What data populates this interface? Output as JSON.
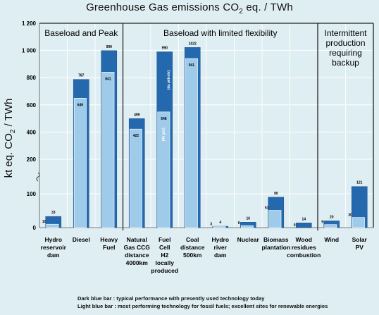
{
  "chart_data": {
    "type": "bar",
    "title_main": "Greenhouse Gas  emissions CO",
    "title_sub": "2",
    "title_end": " eq. / TWh",
    "ylabel_main": "kt eq. CO",
    "ylabel_sub": "2",
    "ylabel_end": " / TWh",
    "y_ticks": [
      "0",
      "100",
      "200",
      "400",
      "600",
      "800",
      "1 000",
      "1 200"
    ],
    "y_tick_values": [
      0,
      100,
      200,
      400,
      600,
      800,
      1000,
      1200
    ],
    "axis_break": "between 100 and 200",
    "categories": [
      [
        "Hydro",
        "reservoir",
        "dam"
      ],
      [
        "Diesel"
      ],
      [
        "Heavy",
        "Fuel"
      ],
      [
        "Natural",
        "Gas CCG",
        "distance",
        "4000km"
      ],
      [
        "Fuel",
        "Cell",
        "H2",
        "locally",
        "produced"
      ],
      [
        "Coal",
        "distance",
        "500km"
      ],
      [
        "Hydro",
        "river",
        "dam"
      ],
      [
        "Nuclear"
      ],
      [
        "Biomass",
        "plantation"
      ],
      [
        "Wood",
        "residues",
        "combustion"
      ],
      [
        "Wind"
      ],
      [
        "Solar",
        "PV"
      ]
    ],
    "series": [
      {
        "name": "Dark blue bar",
        "color": "#2468ad",
        "values": [
          33,
          787,
          999,
          499,
          990,
          1022,
          4,
          16,
          90,
          14,
          20,
          121
        ]
      },
      {
        "name": "Light blue bar",
        "color": "#9fcbea",
        "values": [
          10,
          649,
          841,
          422,
          548,
          941,
          3,
          6,
          51,
          0,
          9,
          30
        ]
      }
    ],
    "bar_notes": [
      {
        "category_index": 4,
        "series": "Dark blue bar",
        "text": "(du pétrole)"
      },
      {
        "category_index": 4,
        "series": "Light blue bar",
        "text": "(du gaz)"
      }
    ],
    "groups": [
      {
        "label_lines": [
          "Baseload and Peak"
        ],
        "categories": [
          0,
          2
        ]
      },
      {
        "label_lines": [
          "Baseload with limited flexibility"
        ],
        "categories": [
          3,
          9
        ]
      },
      {
        "label_lines": [
          "Intermittent",
          "production",
          "requiring",
          "backup"
        ],
        "categories": [
          10,
          11
        ]
      }
    ],
    "legend": [
      {
        "label": "Dark blue bar",
        "text": ": typical performance with presently used technology today"
      },
      {
        "label": "Light blue bar",
        "text": ": most performing technology for fossil fuels; excellent sites for renewable energies"
      }
    ],
    "colors": {
      "background": "#dfeef3",
      "dark": "#2468ad",
      "light": "#9fcbea",
      "grid": "#ffffff"
    }
  }
}
